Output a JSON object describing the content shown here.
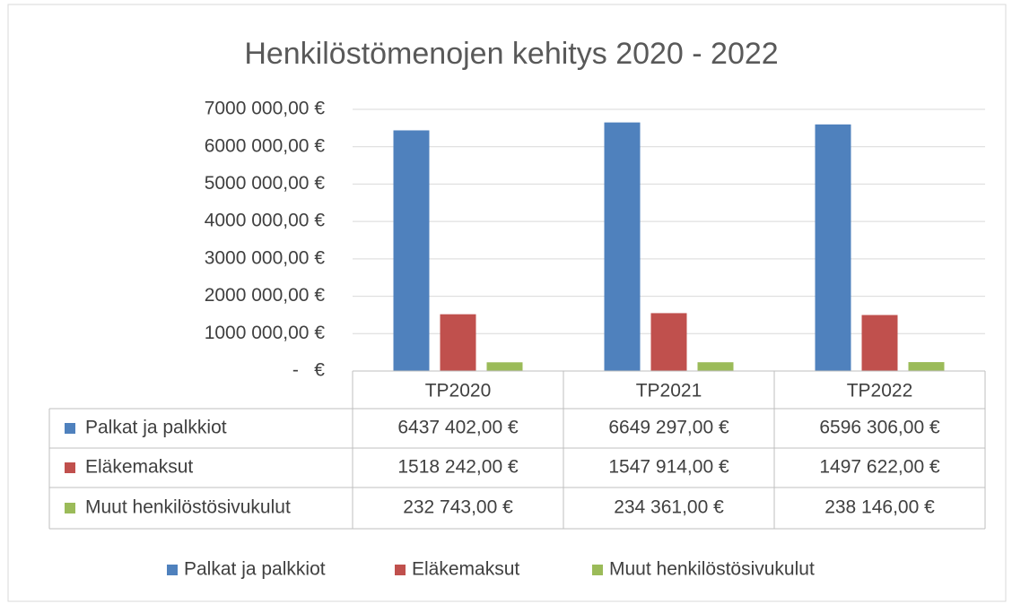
{
  "chart_data": {
    "type": "bar",
    "title": "Henkilöstömenojen kehitys 2020 - 2022",
    "categories": [
      "TP2020",
      "TP2021",
      "TP2022"
    ],
    "series": [
      {
        "name": "Palkat ja palkkiot",
        "color": "#4f81bd",
        "values": [
          6437402,
          6649297,
          6596306
        ],
        "value_labels": [
          "6437 402,00 €",
          "6649 297,00 €",
          "6596 306,00 €"
        ]
      },
      {
        "name": "Eläkemaksut",
        "color": "#c0504d",
        "values": [
          1518242,
          1547914,
          1497622
        ],
        "value_labels": [
          "1518 242,00 €",
          "1547 914,00 €",
          "1497 622,00 €"
        ]
      },
      {
        "name": "Muut henkilöstösivukulut",
        "color": "#9bbb59",
        "values": [
          232743,
          234361,
          238146
        ],
        "value_labels": [
          "232 743,00 €",
          "234 361,00 €",
          "238 146,00 €"
        ]
      }
    ],
    "ylim": [
      0,
      7000000
    ],
    "yticks": [
      {
        "value": 0,
        "label": "-   €"
      },
      {
        "value": 1000000,
        "label": "1000 000,00 €"
      },
      {
        "value": 2000000,
        "label": "2000 000,00 €"
      },
      {
        "value": 3000000,
        "label": "3000 000,00 €"
      },
      {
        "value": 4000000,
        "label": "4000 000,00 €"
      },
      {
        "value": 5000000,
        "label": "5000 000,00 €"
      },
      {
        "value": 6000000,
        "label": "6000 000,00 €"
      },
      {
        "value": 7000000,
        "label": "7000 000,00 €"
      }
    ],
    "grid": true,
    "legend": "bottom",
    "data_table": true
  }
}
